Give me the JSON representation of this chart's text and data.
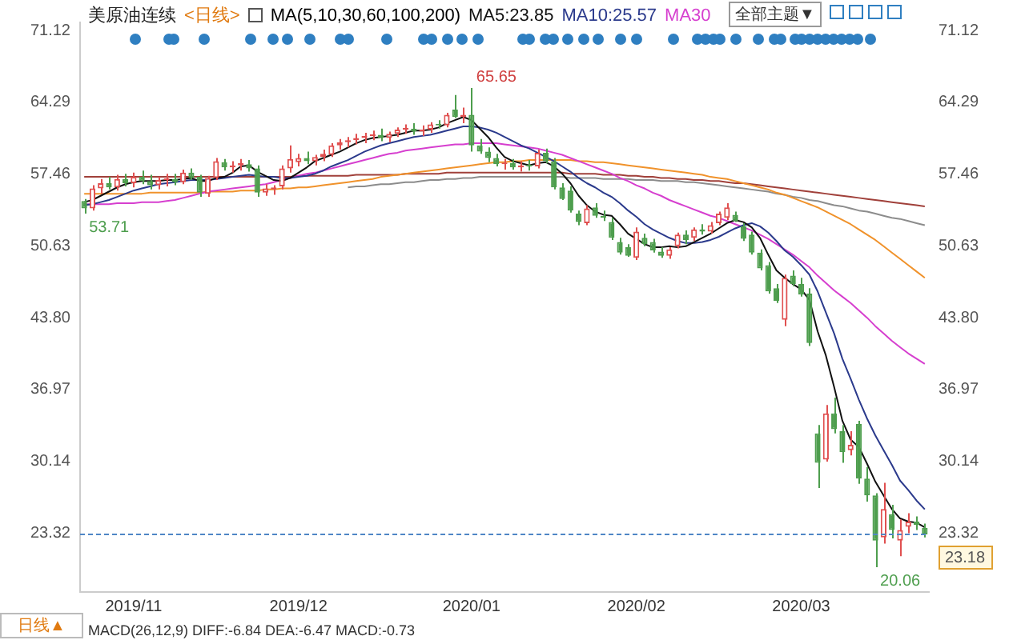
{
  "chart_data": {
    "type": "candlestick",
    "title": "美原油连续",
    "subtitle": "<日线>",
    "legend_title": "MA(5,10,30,60,100,200)",
    "legend": "top",
    "grid": false,
    "marker": "none",
    "categories": [
      null,
      null,
      null,
      null,
      null,
      null,
      "2019/11",
      null,
      null,
      null,
      null,
      null,
      null,
      null,
      null,
      null,
      null,
      null,
      null,
      null,
      null,
      null,
      null,
      null,
      null,
      null,
      "2019/12",
      null,
      null,
      null,
      null,
      null,
      null,
      null,
      null,
      null,
      null,
      null,
      null,
      null,
      null,
      null,
      null,
      null,
      null,
      null,
      null,
      "2020/01",
      null,
      null,
      null,
      null,
      null,
      null,
      null,
      null,
      null,
      null,
      null,
      null,
      null,
      null,
      null,
      null,
      null,
      null,
      null,
      "2020/02",
      null,
      null,
      null,
      null,
      null,
      null,
      null,
      null,
      null,
      null,
      null,
      null,
      null,
      null,
      null,
      null,
      null,
      null,
      null,
      "2020/03",
      null,
      null,
      null,
      null,
      null,
      null,
      null,
      null,
      null,
      null,
      null,
      null,
      null,
      null,
      null
    ],
    "ylim": [
      17.7,
      71.9
    ],
    "yticks": [
      23.32,
      30.14,
      36.97,
      {
        "value": 43.8,
        "label": "43.80"
      },
      50.63,
      57.46,
      64.29,
      71.12
    ],
    "y2lim": [
      17.7,
      71.9
    ],
    "y2ticks": [
      23.32,
      30.14,
      36.97,
      {
        "value": 43.8,
        "label": "43.80"
      },
      50.63,
      57.46,
      64.29,
      71.12
    ],
    "ref_lines": [
      {
        "axis": "y",
        "value": 23.18,
        "label": "23.18",
        "color": "#4f86c6",
        "line_style": "dashed"
      }
    ],
    "annotations": [
      "65.65",
      "53.71",
      "20.06",
      "全部主题▼",
      "日线▲",
      "MACD(26,12,9) DIFF:-6.84 DEA:-6.47 MACD:-0.73"
    ],
    "series": [
      {
        "type": "candlestick",
        "ohlc": [
          [
            54.9,
            55.1,
            53.71,
            54.2
          ],
          [
            54.2,
            56.4,
            54.0,
            56.1
          ],
          [
            56.1,
            57.0,
            55.6,
            56.6
          ],
          [
            56.6,
            57.2,
            56.0,
            56.2
          ],
          [
            56.2,
            57.4,
            55.9,
            57.0
          ],
          [
            57.0,
            57.5,
            56.3,
            56.6
          ],
          [
            56.6,
            57.6,
            56.2,
            57.2
          ],
          [
            57.2,
            57.8,
            56.5,
            56.8
          ],
          [
            56.8,
            57.4,
            56.0,
            56.4
          ],
          [
            56.4,
            57.2,
            56.0,
            56.9
          ],
          [
            56.9,
            57.5,
            56.3,
            57.0
          ],
          [
            57.0,
            57.5,
            56.4,
            56.7
          ],
          [
            56.7,
            57.9,
            56.5,
            57.6
          ],
          [
            57.6,
            58.0,
            56.9,
            57.1
          ],
          [
            57.2,
            57.4,
            55.3,
            55.7
          ],
          [
            55.6,
            57.3,
            55.3,
            57.1
          ],
          [
            57.1,
            59.0,
            56.9,
            58.7
          ],
          [
            58.6,
            58.9,
            57.8,
            58.1
          ],
          [
            58.1,
            58.7,
            57.6,
            58.3
          ],
          [
            58.3,
            58.9,
            57.8,
            58.5
          ],
          [
            58.4,
            58.8,
            57.7,
            58.0
          ],
          [
            58.0,
            58.3,
            55.3,
            55.7
          ],
          [
            55.7,
            56.5,
            55.4,
            56.1
          ],
          [
            56.0,
            56.4,
            55.5,
            56.2
          ],
          [
            56.3,
            58.3,
            56.0,
            58.0
          ],
          [
            58.0,
            60.2,
            57.6,
            58.9
          ],
          [
            58.6,
            59.4,
            58.2,
            59.0
          ],
          [
            59.0,
            59.6,
            58.4,
            58.7
          ],
          [
            58.7,
            59.3,
            58.3,
            59.1
          ],
          [
            59.1,
            59.8,
            58.7,
            59.4
          ],
          [
            59.3,
            60.4,
            59.1,
            60.2
          ],
          [
            60.2,
            60.8,
            59.8,
            60.5
          ],
          [
            60.5,
            61.0,
            60.0,
            60.7
          ],
          [
            60.7,
            61.3,
            60.3,
            60.9
          ],
          [
            60.9,
            61.4,
            60.4,
            61.1
          ],
          [
            61.1,
            61.6,
            60.7,
            61.2
          ],
          [
            61.2,
            61.8,
            60.6,
            60.9
          ],
          [
            60.9,
            61.5,
            60.5,
            61.3
          ],
          [
            61.3,
            61.9,
            61.0,
            61.7
          ],
          [
            61.7,
            62.2,
            61.3,
            61.8
          ],
          [
            61.8,
            62.3,
            61.2,
            61.5
          ],
          [
            61.5,
            62.1,
            61.1,
            61.7
          ],
          [
            61.7,
            62.4,
            61.4,
            62.2
          ],
          [
            62.2,
            62.6,
            61.8,
            62.1
          ],
          [
            62.1,
            63.3,
            61.9,
            63.1
          ],
          [
            63.6,
            65.0,
            62.8,
            62.9
          ],
          [
            62.9,
            63.8,
            62.3,
            63.1
          ],
          [
            63.1,
            65.65,
            59.6,
            60.2
          ],
          [
            60.2,
            60.8,
            59.4,
            59.6
          ],
          [
            59.6,
            60.0,
            58.6,
            59.0
          ],
          [
            59.0,
            59.4,
            58.2,
            58.4
          ],
          [
            58.4,
            58.9,
            57.9,
            58.5
          ],
          [
            58.5,
            58.9,
            57.9,
            58.1
          ],
          [
            58.1,
            58.7,
            57.7,
            58.3
          ],
          [
            58.3,
            58.8,
            57.8,
            58.2
          ],
          [
            58.2,
            59.8,
            58.0,
            59.5
          ],
          [
            59.5,
            59.9,
            58.5,
            58.7
          ],
          [
            58.7,
            59.0,
            56.0,
            56.2
          ],
          [
            56.2,
            56.6,
            55.0,
            55.1
          ],
          [
            55.9,
            56.3,
            53.8,
            54.0
          ],
          [
            53.7,
            54.0,
            52.6,
            52.9
          ],
          [
            52.8,
            54.5,
            52.6,
            54.2
          ],
          [
            54.3,
            54.7,
            53.3,
            53.5
          ],
          [
            53.5,
            54.0,
            53.0,
            53.3
          ],
          [
            52.9,
            53.3,
            51.2,
            51.4
          ],
          [
            51.0,
            51.4,
            49.8,
            50.0
          ],
          [
            50.5,
            50.8,
            49.6,
            49.7
          ],
          [
            49.5,
            52.4,
            49.3,
            52.0
          ],
          [
            51.4,
            51.8,
            50.6,
            50.8
          ],
          [
            51.0,
            51.3,
            50.0,
            50.2
          ],
          [
            50.1,
            50.5,
            49.5,
            49.7
          ],
          [
            49.7,
            50.5,
            49.4,
            50.3
          ],
          [
            50.6,
            51.9,
            50.4,
            51.7
          ],
          [
            51.7,
            52.1,
            50.8,
            51.2
          ],
          [
            51.4,
            52.4,
            51.1,
            52.2
          ],
          [
            52.2,
            52.7,
            51.7,
            52.0
          ],
          [
            52.0,
            52.9,
            51.8,
            52.6
          ],
          [
            52.8,
            53.9,
            52.6,
            53.7
          ],
          [
            53.3,
            54.7,
            53.1,
            54.3
          ],
          [
            53.6,
            53.9,
            52.9,
            53.0
          ],
          [
            52.5,
            52.8,
            51.1,
            51.3
          ],
          [
            51.7,
            52.0,
            49.8,
            50.0
          ],
          [
            50.0,
            50.3,
            48.3,
            48.5
          ],
          [
            48.8,
            49.1,
            46.1,
            46.3
          ],
          [
            46.6,
            47.0,
            45.2,
            45.4
          ],
          [
            43.6,
            47.9,
            43.0,
            47.6
          ],
          [
            47.8,
            48.3,
            46.8,
            47.0
          ],
          [
            47.0,
            47.6,
            45.8,
            46.0
          ],
          [
            46.1,
            46.6,
            41.1,
            41.4
          ],
          [
            32.8,
            33.6,
            27.6,
            30.0
          ],
          [
            30.3,
            35.5,
            30.1,
            34.7
          ],
          [
            34.7,
            36.2,
            32.8,
            33.2
          ],
          [
            33.0,
            33.6,
            30.0,
            31.0
          ],
          [
            31.2,
            33.0,
            30.7,
            31.7
          ],
          [
            33.7,
            34.0,
            28.0,
            28.5
          ],
          [
            28.5,
            29.6,
            26.3,
            26.9
          ],
          [
            26.9,
            27.1,
            20.06,
            22.6
          ],
          [
            22.9,
            28.1,
            22.3,
            25.6
          ],
          [
            25.1,
            26.0,
            22.8,
            23.6
          ],
          [
            22.6,
            24.6,
            21.1,
            23.6
          ],
          [
            23.9,
            25.2,
            23.3,
            24.4
          ],
          [
            24.4,
            24.9,
            23.6,
            24.1
          ],
          [
            23.8,
            24.2,
            22.9,
            23.18
          ]
        ],
        "colors": [
          "#4e9e4e",
          "#e05050",
          "#e05050",
          "#4e9e4e",
          "#e05050",
          "#4e9e4e",
          "#e05050",
          "#4e9e4e",
          "#4e9e4e",
          "#e05050",
          "#e05050",
          "#4e9e4e",
          "#e05050",
          "#4e9e4e",
          "#4e9e4e",
          "#e05050",
          "#e05050",
          "#4e9e4e",
          "#e05050",
          "#e05050",
          "#4e9e4e",
          "#4e9e4e",
          "#e05050",
          "#e05050",
          "#e05050",
          "#e05050",
          "#e05050",
          "#4e9e4e",
          "#e05050",
          "#e05050",
          "#e05050",
          "#e05050",
          "#e05050",
          "#e05050",
          "#e05050",
          "#e05050",
          "#4e9e4e",
          "#e05050",
          "#e05050",
          "#e05050",
          "#4e9e4e",
          "#e05050",
          "#e05050",
          "#4e9e4e",
          "#e05050",
          "#4e9e4e",
          "#e05050",
          "#4e9e4e",
          "#4e9e4e",
          "#4e9e4e",
          "#4e9e4e",
          "#e05050",
          "#4e9e4e",
          "#e05050",
          "#4e9e4e",
          "#e05050",
          "#4e9e4e",
          "#4e9e4e",
          "#4e9e4e",
          "#4e9e4e",
          "#4e9e4e",
          "#e05050",
          "#4e9e4e",
          "#4e9e4e",
          "#4e9e4e",
          "#4e9e4e",
          "#4e9e4e",
          "#e05050",
          "#4e9e4e",
          "#4e9e4e",
          "#4e9e4e",
          "#e05050",
          "#e05050",
          "#4e9e4e",
          "#e05050",
          "#4e9e4e",
          "#e05050",
          "#e05050",
          "#e05050",
          "#4e9e4e",
          "#4e9e4e",
          "#4e9e4e",
          "#4e9e4e",
          "#4e9e4e",
          "#4e9e4e",
          "#e05050",
          "#4e9e4e",
          "#4e9e4e",
          "#4e9e4e",
          "#4e9e4e",
          "#e05050",
          "#4e9e4e",
          "#4e9e4e",
          "#e05050",
          "#4e9e4e",
          "#4e9e4e",
          "#4e9e4e",
          "#e05050",
          "#4e9e4e",
          "#e05050",
          "#e05050",
          "#4e9e4e",
          "#4e9e4e"
        ]
      },
      {
        "type": "line",
        "name": "MA5:23.85",
        "color": "#111111",
        "values": [
          54.8,
          55.0,
          55.4,
          55.8,
          56.2,
          56.5,
          56.7,
          56.8,
          56.8,
          56.8,
          56.9,
          56.9,
          57.0,
          57.1,
          56.8,
          56.8,
          57.1,
          57.2,
          57.6,
          58.2,
          58.3,
          57.7,
          57.3,
          56.9,
          56.8,
          57.1,
          57.6,
          58.1,
          58.7,
          59.0,
          59.3,
          59.6,
          60.0,
          60.4,
          60.7,
          60.9,
          61.0,
          61.1,
          61.2,
          61.4,
          61.6,
          61.6,
          61.7,
          61.9,
          62.3,
          62.6,
          62.9,
          62.6,
          61.8,
          61.0,
          60.0,
          59.1,
          58.7,
          58.5,
          58.3,
          58.5,
          58.6,
          58.2,
          57.5,
          56.6,
          55.4,
          54.5,
          53.9,
          53.6,
          53.5,
          52.7,
          51.8,
          51.3,
          50.8,
          50.5,
          50.5,
          50.6,
          50.5,
          50.6,
          51.0,
          51.4,
          51.8,
          52.3,
          52.8,
          53.1,
          52.9,
          52.4,
          51.4,
          49.8,
          48.3,
          47.6,
          47.0,
          46.5,
          45.5,
          42.5,
          40.2,
          37.2,
          34.0,
          32.2,
          31.5,
          29.9,
          28.2,
          26.9,
          25.6,
          24.7,
          24.4,
          24.3,
          23.85
        ]
      },
      {
        "type": "line",
        "name": "MA10:25.57",
        "color": "#2b3a8c",
        "values": [
          54.5,
          54.6,
          54.8,
          55.0,
          55.3,
          55.6,
          55.9,
          56.1,
          56.3,
          56.5,
          56.6,
          56.7,
          56.8,
          56.9,
          56.9,
          56.9,
          57.0,
          57.1,
          57.2,
          57.3,
          57.4,
          57.3,
          57.2,
          57.2,
          57.1,
          57.1,
          57.2,
          57.3,
          57.5,
          57.8,
          58.2,
          58.5,
          58.8,
          59.2,
          59.6,
          59.9,
          60.2,
          60.4,
          60.6,
          60.8,
          61.0,
          61.1,
          61.2,
          61.4,
          61.6,
          61.8,
          62.0,
          62.0,
          61.9,
          61.7,
          61.4,
          61.0,
          60.6,
          60.2,
          59.9,
          59.5,
          59.1,
          58.7,
          58.2,
          57.7,
          57.1,
          56.6,
          56.2,
          55.7,
          55.3,
          54.7,
          54.0,
          53.4,
          52.7,
          52.2,
          51.8,
          51.4,
          51.1,
          50.9,
          50.9,
          51.0,
          51.2,
          51.5,
          51.9,
          52.3,
          52.6,
          52.8,
          52.5,
          51.9,
          51.1,
          50.2,
          49.6,
          48.8,
          47.9,
          46.3,
          44.3,
          42.3,
          39.9,
          38.0,
          36.0,
          34.2,
          32.6,
          31.2,
          29.8,
          28.3,
          27.4,
          26.4,
          25.57
        ]
      },
      {
        "type": "line",
        "name": "MA30",
        "color": "#d63fcf",
        "values": [
          54.6,
          54.6,
          54.6,
          54.6,
          54.7,
          54.7,
          54.7,
          54.8,
          54.8,
          54.8,
          54.9,
          55.0,
          55.2,
          55.4,
          55.6,
          55.8,
          55.9,
          56.0,
          56.1,
          56.2,
          56.3,
          56.4,
          56.5,
          56.7,
          56.9,
          57.1,
          57.3,
          57.5,
          57.6,
          57.8,
          58.0,
          58.2,
          58.4,
          58.6,
          58.8,
          59.0,
          59.2,
          59.4,
          59.5,
          59.7,
          59.8,
          59.9,
          60.0,
          60.1,
          60.2,
          60.3,
          60.3,
          60.4,
          60.4,
          60.4,
          60.4,
          60.3,
          60.2,
          60.1,
          60.0,
          59.9,
          59.7,
          59.5,
          59.3,
          59.0,
          58.7,
          58.4,
          58.1,
          57.8,
          57.5,
          57.1,
          56.8,
          56.4,
          56.1,
          55.7,
          55.4,
          55.0,
          54.7,
          54.4,
          54.1,
          53.8,
          53.5,
          53.3,
          53.0,
          52.7,
          52.4,
          52.1,
          51.7,
          51.3,
          50.8,
          50.3,
          49.8,
          49.2,
          48.6,
          47.8,
          47.1,
          46.4,
          45.8,
          45.2,
          44.5,
          43.8,
          43.0,
          42.3,
          41.6,
          41.0,
          40.4,
          39.9,
          39.4
        ]
      },
      {
        "type": "line",
        "color": "#f0922b",
        "values": [
          55.6,
          55.6,
          55.6,
          55.6,
          55.6,
          55.6,
          55.6,
          55.6,
          55.7,
          55.7,
          55.7,
          55.7,
          55.7,
          55.7,
          55.7,
          55.8,
          55.8,
          55.8,
          55.8,
          55.9,
          55.9,
          55.9,
          56.0,
          56.0,
          56.1,
          56.1,
          56.2,
          56.2,
          56.3,
          56.4,
          56.5,
          56.6,
          56.7,
          56.8,
          56.9,
          57.0,
          57.2,
          57.3,
          57.4,
          57.5,
          57.6,
          57.7,
          57.8,
          57.9,
          58.0,
          58.1,
          58.2,
          58.3,
          58.4,
          58.5,
          58.6,
          58.6,
          58.7,
          58.7,
          58.8,
          58.8,
          58.8,
          58.8,
          58.8,
          58.8,
          58.7,
          58.7,
          58.6,
          58.6,
          58.5,
          58.4,
          58.3,
          58.2,
          58.1,
          58.0,
          57.9,
          57.8,
          57.7,
          57.6,
          57.5,
          57.4,
          57.2,
          57.1,
          57.0,
          56.8,
          56.6,
          56.4,
          56.2,
          56.0,
          55.7,
          55.5,
          55.2,
          54.9,
          54.6,
          54.3,
          53.9,
          53.5,
          53.1,
          52.7,
          52.2,
          51.7,
          51.2,
          50.6,
          50.0,
          49.4,
          48.8,
          48.2,
          47.6
        ]
      },
      {
        "type": "line",
        "color": "#a0403a",
        "values": [
          57.2,
          57.2,
          57.2,
          57.2,
          57.2,
          57.2,
          57.2,
          57.2,
          57.2,
          57.2,
          57.2,
          57.2,
          57.2,
          57.2,
          57.2,
          57.2,
          57.2,
          57.2,
          57.2,
          57.2,
          57.2,
          57.2,
          57.2,
          57.2,
          57.2,
          57.2,
          57.3,
          57.3,
          57.3,
          57.3,
          57.3,
          57.3,
          57.3,
          57.4,
          57.4,
          57.4,
          57.4,
          57.4,
          57.4,
          57.5,
          57.5,
          57.5,
          57.5,
          57.5,
          57.6,
          57.6,
          57.6,
          57.6,
          57.6,
          57.6,
          57.6,
          57.6,
          57.6,
          57.6,
          57.6,
          57.6,
          57.6,
          57.6,
          57.6,
          57.5,
          57.5,
          57.5,
          57.5,
          57.4,
          57.4,
          57.4,
          57.3,
          57.3,
          57.2,
          57.2,
          57.1,
          57.1,
          57.0,
          57.0,
          56.9,
          56.9,
          56.8,
          56.8,
          56.7,
          56.6,
          56.6,
          56.5,
          56.4,
          56.3,
          56.2,
          56.1,
          56.0,
          55.9,
          55.8,
          55.7,
          55.6,
          55.5,
          55.4,
          55.3,
          55.2,
          55.1,
          55.0,
          54.9,
          54.8,
          54.7,
          54.6,
          54.5,
          54.4
        ]
      },
      {
        "type": "line",
        "color": "#8c8c8c",
        "values": [
          null,
          null,
          null,
          null,
          null,
          null,
          null,
          null,
          null,
          null,
          null,
          null,
          null,
          null,
          null,
          null,
          null,
          null,
          null,
          null,
          null,
          null,
          null,
          null,
          null,
          null,
          null,
          null,
          null,
          null,
          null,
          null,
          56.2,
          56.3,
          56.3,
          56.4,
          56.5,
          56.5,
          56.6,
          56.7,
          56.7,
          56.8,
          56.9,
          56.9,
          57.0,
          57.0,
          57.1,
          57.1,
          57.2,
          57.2,
          57.2,
          57.2,
          57.2,
          57.2,
          57.2,
          57.2,
          57.2,
          57.2,
          57.2,
          57.1,
          57.1,
          57.1,
          57.1,
          57.0,
          57.0,
          57.0,
          57.0,
          56.9,
          56.9,
          56.9,
          56.8,
          56.8,
          56.8,
          56.7,
          56.7,
          56.6,
          56.5,
          56.4,
          56.3,
          56.2,
          56.1,
          56.0,
          55.9,
          55.8,
          55.6,
          55.5,
          55.3,
          55.2,
          55.0,
          54.9,
          54.7,
          54.5,
          54.4,
          54.2,
          54.0,
          53.9,
          53.7,
          53.5,
          53.3,
          53.2,
          53.0,
          52.8,
          52.6
        ]
      }
    ]
  }
}
